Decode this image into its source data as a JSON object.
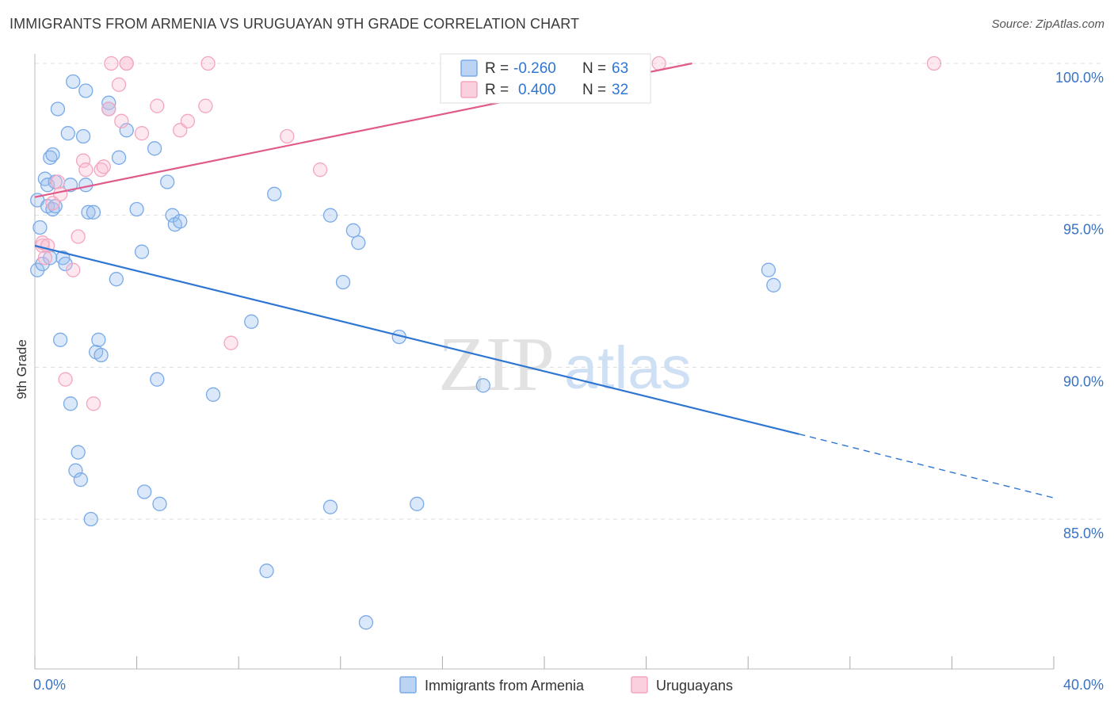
{
  "title": "IMMIGRANTS FROM ARMENIA VS URUGUAYAN 9TH GRADE CORRELATION CHART",
  "source": "Source: ZipAtlas.com",
  "watermark": {
    "zip": "ZIP",
    "atlas": "atlas"
  },
  "colors": {
    "blue": "#7aaae8",
    "blue_line": "#2f76d2",
    "pink": "#f4a6bf",
    "pink_line": "#e05a8a",
    "axis_label": "#3a72c4",
    "grid": "#dddddd"
  },
  "stats": {
    "r_label": "R =",
    "n_label": "N =",
    "series": [
      {
        "r": "-0.260",
        "n": "63"
      },
      {
        "r": "0.400",
        "n": "32"
      }
    ]
  },
  "chart_data": {
    "type": "scatter",
    "title": "IMMIGRANTS FROM ARMENIA VS URUGUAYAN 9TH GRADE CORRELATION CHART",
    "xlabel": "",
    "ylabel": "9th Grade",
    "xlim": [
      0,
      40
    ],
    "ylim": [
      80.5,
      100.5
    ],
    "x_tick_labels": [
      "0.0%",
      "40.0%"
    ],
    "y_ticks": [
      100,
      95,
      90,
      85
    ],
    "y_tick_labels": [
      "100.0%",
      "95.0%",
      "90.0%",
      "85.0%"
    ],
    "grid": true,
    "legend_position": "bottom-center",
    "series": [
      {
        "name": "Immigrants from Armenia",
        "color": "#7aaae8",
        "trend": {
          "x": [
            0,
            30
          ],
          "y": [
            94.0,
            87.8
          ],
          "dashed_to": [
            40,
            85.7
          ]
        },
        "points": [
          [
            0.1,
            95.5
          ],
          [
            0.1,
            93.2
          ],
          [
            0.2,
            94.6
          ],
          [
            0.3,
            93.4
          ],
          [
            0.4,
            96.2
          ],
          [
            0.5,
            95.3
          ],
          [
            0.5,
            96.0
          ],
          [
            0.6,
            96.9
          ],
          [
            0.6,
            93.6
          ],
          [
            0.7,
            97.0
          ],
          [
            0.7,
            95.2
          ],
          [
            0.8,
            96.1
          ],
          [
            0.8,
            95.3
          ],
          [
            0.9,
            98.5
          ],
          [
            1.0,
            90.9
          ],
          [
            1.1,
            93.6
          ],
          [
            1.2,
            93.4
          ],
          [
            1.3,
            97.7
          ],
          [
            1.4,
            96.0
          ],
          [
            1.4,
            88.8
          ],
          [
            1.5,
            99.4
          ],
          [
            1.6,
            86.6
          ],
          [
            1.7,
            87.2
          ],
          [
            1.8,
            86.3
          ],
          [
            1.9,
            97.6
          ],
          [
            2.0,
            96.0
          ],
          [
            2.0,
            99.1
          ],
          [
            2.1,
            95.1
          ],
          [
            2.2,
            85.0
          ],
          [
            2.3,
            95.1
          ],
          [
            2.4,
            90.5
          ],
          [
            2.5,
            90.9
          ],
          [
            2.6,
            90.4
          ],
          [
            2.9,
            98.7
          ],
          [
            2.9,
            98.5
          ],
          [
            3.2,
            92.9
          ],
          [
            3.3,
            96.9
          ],
          [
            3.6,
            97.8
          ],
          [
            4.0,
            95.2
          ],
          [
            4.2,
            93.8
          ],
          [
            4.3,
            85.9
          ],
          [
            4.7,
            97.2
          ],
          [
            4.8,
            89.6
          ],
          [
            4.9,
            85.5
          ],
          [
            5.2,
            96.1
          ],
          [
            5.4,
            95.0
          ],
          [
            5.5,
            94.7
          ],
          [
            5.7,
            94.8
          ],
          [
            7.0,
            89.1
          ],
          [
            8.5,
            91.5
          ],
          [
            9.1,
            83.3
          ],
          [
            9.4,
            95.7
          ],
          [
            11.6,
            85.4
          ],
          [
            11.6,
            95.0
          ],
          [
            12.1,
            92.8
          ],
          [
            12.5,
            94.5
          ],
          [
            12.7,
            94.1
          ],
          [
            13.0,
            81.6
          ],
          [
            14.3,
            91.0
          ],
          [
            15.0,
            85.5
          ],
          [
            17.6,
            89.4
          ],
          [
            29.0,
            92.7
          ],
          [
            28.8,
            93.2
          ]
        ]
      },
      {
        "name": "Uruguayans",
        "color": "#f4a6bf",
        "trend": {
          "x": [
            0,
            25.8
          ],
          "y": [
            95.6,
            100.0
          ]
        },
        "points": [
          [
            0.3,
            94.0
          ],
          [
            0.3,
            94.1
          ],
          [
            0.4,
            93.6
          ],
          [
            0.5,
            94.0
          ],
          [
            0.7,
            95.4
          ],
          [
            0.9,
            96.1
          ],
          [
            1.0,
            95.7
          ],
          [
            1.2,
            89.6
          ],
          [
            1.5,
            93.2
          ],
          [
            1.7,
            94.3
          ],
          [
            1.9,
            96.8
          ],
          [
            2.0,
            96.5
          ],
          [
            2.3,
            88.8
          ],
          [
            2.6,
            96.5
          ],
          [
            2.7,
            96.6
          ],
          [
            2.9,
            98.5
          ],
          [
            3.0,
            100.0
          ],
          [
            3.3,
            99.3
          ],
          [
            3.4,
            98.1
          ],
          [
            3.6,
            100.0
          ],
          [
            3.6,
            100.0
          ],
          [
            4.2,
            97.7
          ],
          [
            4.8,
            98.6
          ],
          [
            5.7,
            97.8
          ],
          [
            6.0,
            98.1
          ],
          [
            6.7,
            98.6
          ],
          [
            6.8,
            100.0
          ],
          [
            7.7,
            90.8
          ],
          [
            9.9,
            97.6
          ],
          [
            11.2,
            96.5
          ],
          [
            24.5,
            100.0
          ],
          [
            35.3,
            100.0
          ]
        ]
      }
    ]
  }
}
